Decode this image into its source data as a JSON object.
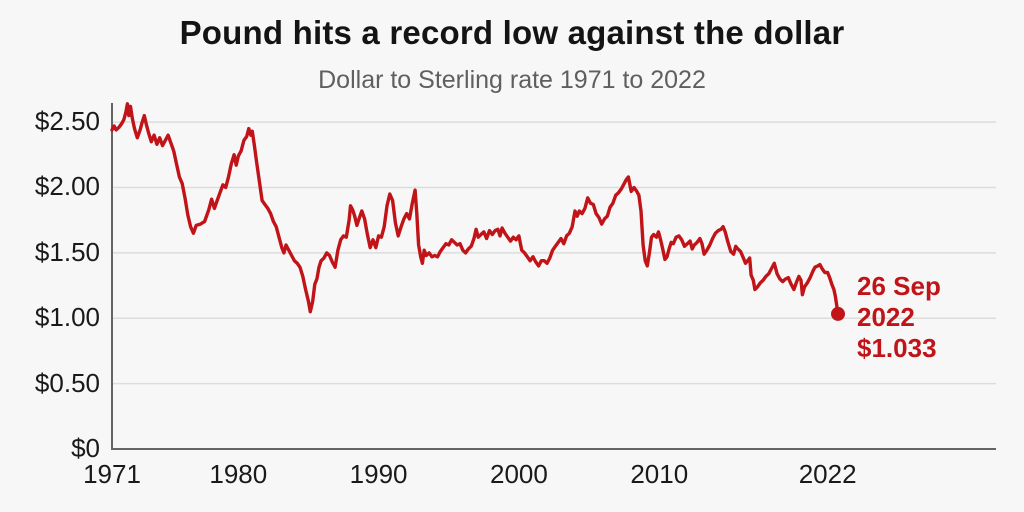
{
  "colors": {
    "background": "#f7f7f7",
    "accent_red": "#c01418",
    "grid": "#dcdcdc",
    "axis": "#646464",
    "title_text": "#141414",
    "subtitle_text": "#5f5f5f",
    "tick_text": "#1a1a1a"
  },
  "chart_data": {
    "type": "line",
    "title": "Pound hits a record low against the dollar",
    "subtitle": "Dollar to Sterling rate 1971 to 2022",
    "xlabel": "",
    "ylabel": "",
    "grid": "horizontal",
    "legend": "none",
    "xlim": [
      1971,
      2034
    ],
    "ylim": [
      0,
      2.646
    ],
    "x_ticks": [
      {
        "label": "1971",
        "value": 1971
      },
      {
        "label": "1980",
        "value": 1980
      },
      {
        "label": "1990",
        "value": 1990
      },
      {
        "label": "2000",
        "value": 2000
      },
      {
        "label": "2010",
        "value": 2010
      },
      {
        "label": "2022",
        "value": 2022
      }
    ],
    "y_ticks": [
      {
        "label": "$2.50",
        "value": 2.5
      },
      {
        "label": "$2.00",
        "value": 2.0
      },
      {
        "label": "$1.50",
        "value": 1.5
      },
      {
        "label": "$1.00",
        "value": 1.0
      },
      {
        "label": "$0.50",
        "value": 0.5
      },
      {
        "label": "$0",
        "value": 0
      }
    ],
    "annotation": {
      "lines": [
        "26 Sep",
        "2022",
        "$1.033"
      ],
      "date": "26 Sep 2022",
      "value": 1.033
    },
    "series": [
      {
        "name": "Dollar to Sterling exchange rate",
        "points": [
          [
            1971.0,
            2.44
          ],
          [
            1971.15,
            2.47
          ],
          [
            1971.3,
            2.44
          ],
          [
            1971.5,
            2.46
          ],
          [
            1971.7,
            2.49
          ],
          [
            1971.85,
            2.52
          ],
          [
            1972.0,
            2.58
          ],
          [
            1972.1,
            2.64
          ],
          [
            1972.2,
            2.55
          ],
          [
            1972.32,
            2.62
          ],
          [
            1972.45,
            2.53
          ],
          [
            1972.6,
            2.45
          ],
          [
            1972.8,
            2.38
          ],
          [
            1973.0,
            2.44
          ],
          [
            1973.15,
            2.5
          ],
          [
            1973.3,
            2.55
          ],
          [
            1973.45,
            2.48
          ],
          [
            1973.6,
            2.42
          ],
          [
            1973.8,
            2.35
          ],
          [
            1974.0,
            2.4
          ],
          [
            1974.2,
            2.33
          ],
          [
            1974.4,
            2.38
          ],
          [
            1974.6,
            2.32
          ],
          [
            1974.8,
            2.36
          ],
          [
            1975.0,
            2.4
          ],
          [
            1975.2,
            2.34
          ],
          [
            1975.4,
            2.28
          ],
          [
            1975.6,
            2.18
          ],
          [
            1975.8,
            2.08
          ],
          [
            1976.0,
            2.03
          ],
          [
            1976.2,
            1.92
          ],
          [
            1976.4,
            1.79
          ],
          [
            1976.6,
            1.7
          ],
          [
            1976.8,
            1.65
          ],
          [
            1977.0,
            1.71
          ],
          [
            1977.3,
            1.72
          ],
          [
            1977.6,
            1.74
          ],
          [
            1977.9,
            1.83
          ],
          [
            1978.1,
            1.91
          ],
          [
            1978.3,
            1.84
          ],
          [
            1978.5,
            1.9
          ],
          [
            1978.7,
            1.96
          ],
          [
            1978.9,
            2.02
          ],
          [
            1979.1,
            2.0
          ],
          [
            1979.3,
            2.08
          ],
          [
            1979.5,
            2.18
          ],
          [
            1979.7,
            2.25
          ],
          [
            1979.85,
            2.17
          ],
          [
            1980.0,
            2.24
          ],
          [
            1980.2,
            2.28
          ],
          [
            1980.4,
            2.36
          ],
          [
            1980.6,
            2.39
          ],
          [
            1980.75,
            2.45
          ],
          [
            1980.9,
            2.4
          ],
          [
            1981.0,
            2.43
          ],
          [
            1981.15,
            2.32
          ],
          [
            1981.3,
            2.2
          ],
          [
            1981.5,
            2.05
          ],
          [
            1981.7,
            1.9
          ],
          [
            1981.9,
            1.87
          ],
          [
            1982.1,
            1.84
          ],
          [
            1982.3,
            1.8
          ],
          [
            1982.5,
            1.74
          ],
          [
            1982.7,
            1.7
          ],
          [
            1982.9,
            1.62
          ],
          [
            1983.1,
            1.54
          ],
          [
            1983.25,
            1.5
          ],
          [
            1983.4,
            1.56
          ],
          [
            1983.6,
            1.52
          ],
          [
            1983.8,
            1.48
          ],
          [
            1984.0,
            1.44
          ],
          [
            1984.2,
            1.42
          ],
          [
            1984.4,
            1.39
          ],
          [
            1984.6,
            1.32
          ],
          [
            1984.8,
            1.22
          ],
          [
            1985.0,
            1.13
          ],
          [
            1985.13,
            1.05
          ],
          [
            1985.3,
            1.13
          ],
          [
            1985.45,
            1.26
          ],
          [
            1985.6,
            1.3
          ],
          [
            1985.75,
            1.39
          ],
          [
            1985.9,
            1.44
          ],
          [
            1986.1,
            1.46
          ],
          [
            1986.3,
            1.5
          ],
          [
            1986.5,
            1.48
          ],
          [
            1986.7,
            1.43
          ],
          [
            1986.9,
            1.39
          ],
          [
            1987.1,
            1.52
          ],
          [
            1987.3,
            1.6
          ],
          [
            1987.5,
            1.63
          ],
          [
            1987.7,
            1.62
          ],
          [
            1987.9,
            1.75
          ],
          [
            1988.0,
            1.86
          ],
          [
            1988.15,
            1.83
          ],
          [
            1988.3,
            1.78
          ],
          [
            1988.45,
            1.71
          ],
          [
            1988.6,
            1.76
          ],
          [
            1988.8,
            1.82
          ],
          [
            1989.0,
            1.76
          ],
          [
            1989.2,
            1.64
          ],
          [
            1989.4,
            1.54
          ],
          [
            1989.6,
            1.6
          ],
          [
            1989.8,
            1.54
          ],
          [
            1990.0,
            1.63
          ],
          [
            1990.2,
            1.62
          ],
          [
            1990.4,
            1.7
          ],
          [
            1990.6,
            1.86
          ],
          [
            1990.8,
            1.95
          ],
          [
            1991.0,
            1.9
          ],
          [
            1991.2,
            1.73
          ],
          [
            1991.4,
            1.63
          ],
          [
            1991.6,
            1.7
          ],
          [
            1991.8,
            1.76
          ],
          [
            1992.0,
            1.8
          ],
          [
            1992.2,
            1.76
          ],
          [
            1992.4,
            1.88
          ],
          [
            1992.6,
            1.98
          ],
          [
            1992.72,
            1.8
          ],
          [
            1992.85,
            1.56
          ],
          [
            1993.0,
            1.47
          ],
          [
            1993.12,
            1.42
          ],
          [
            1993.25,
            1.52
          ],
          [
            1993.4,
            1.48
          ],
          [
            1993.6,
            1.5
          ],
          [
            1993.8,
            1.47
          ],
          [
            1994.0,
            1.48
          ],
          [
            1994.2,
            1.47
          ],
          [
            1994.4,
            1.51
          ],
          [
            1994.6,
            1.54
          ],
          [
            1994.8,
            1.57
          ],
          [
            1995.0,
            1.56
          ],
          [
            1995.2,
            1.6
          ],
          [
            1995.4,
            1.58
          ],
          [
            1995.6,
            1.56
          ],
          [
            1995.8,
            1.57
          ],
          [
            1996.0,
            1.52
          ],
          [
            1996.2,
            1.5
          ],
          [
            1996.4,
            1.53
          ],
          [
            1996.6,
            1.55
          ],
          [
            1996.8,
            1.61
          ],
          [
            1996.95,
            1.68
          ],
          [
            1997.1,
            1.62
          ],
          [
            1997.3,
            1.64
          ],
          [
            1997.5,
            1.66
          ],
          [
            1997.7,
            1.61
          ],
          [
            1997.9,
            1.67
          ],
          [
            1998.1,
            1.64
          ],
          [
            1998.3,
            1.67
          ],
          [
            1998.5,
            1.68
          ],
          [
            1998.65,
            1.63
          ],
          [
            1998.8,
            1.69
          ],
          [
            1999.0,
            1.65
          ],
          [
            1999.2,
            1.62
          ],
          [
            1999.4,
            1.59
          ],
          [
            1999.6,
            1.62
          ],
          [
            1999.8,
            1.6
          ],
          [
            2000.0,
            1.63
          ],
          [
            2000.2,
            1.52
          ],
          [
            2000.4,
            1.5
          ],
          [
            2000.6,
            1.47
          ],
          [
            2000.8,
            1.44
          ],
          [
            2001.0,
            1.47
          ],
          [
            2001.2,
            1.43
          ],
          [
            2001.4,
            1.4
          ],
          [
            2001.6,
            1.44
          ],
          [
            2001.8,
            1.44
          ],
          [
            2002.0,
            1.42
          ],
          [
            2002.2,
            1.46
          ],
          [
            2002.4,
            1.52
          ],
          [
            2002.6,
            1.55
          ],
          [
            2002.8,
            1.58
          ],
          [
            2003.0,
            1.61
          ],
          [
            2003.2,
            1.57
          ],
          [
            2003.4,
            1.63
          ],
          [
            2003.6,
            1.65
          ],
          [
            2003.8,
            1.7
          ],
          [
            2004.0,
            1.82
          ],
          [
            2004.15,
            1.78
          ],
          [
            2004.3,
            1.82
          ],
          [
            2004.5,
            1.8
          ],
          [
            2004.7,
            1.84
          ],
          [
            2004.9,
            1.92
          ],
          [
            2005.1,
            1.88
          ],
          [
            2005.3,
            1.87
          ],
          [
            2005.5,
            1.8
          ],
          [
            2005.7,
            1.77
          ],
          [
            2005.9,
            1.72
          ],
          [
            2006.1,
            1.76
          ],
          [
            2006.3,
            1.78
          ],
          [
            2006.5,
            1.85
          ],
          [
            2006.7,
            1.88
          ],
          [
            2006.9,
            1.94
          ],
          [
            2007.1,
            1.96
          ],
          [
            2007.3,
            1.99
          ],
          [
            2007.5,
            2.03
          ],
          [
            2007.65,
            2.06
          ],
          [
            2007.8,
            2.08
          ],
          [
            2008.0,
            1.97
          ],
          [
            2008.2,
            2.0
          ],
          [
            2008.4,
            1.97
          ],
          [
            2008.55,
            1.94
          ],
          [
            2008.7,
            1.82
          ],
          [
            2008.85,
            1.56
          ],
          [
            2009.0,
            1.44
          ],
          [
            2009.15,
            1.4
          ],
          [
            2009.3,
            1.5
          ],
          [
            2009.45,
            1.62
          ],
          [
            2009.6,
            1.64
          ],
          [
            2009.8,
            1.62
          ],
          [
            2009.95,
            1.66
          ],
          [
            2010.1,
            1.6
          ],
          [
            2010.25,
            1.53
          ],
          [
            2010.4,
            1.45
          ],
          [
            2010.55,
            1.47
          ],
          [
            2010.7,
            1.53
          ],
          [
            2010.85,
            1.58
          ],
          [
            2011.0,
            1.57
          ],
          [
            2011.2,
            1.62
          ],
          [
            2011.4,
            1.63
          ],
          [
            2011.6,
            1.6
          ],
          [
            2011.8,
            1.55
          ],
          [
            2012.0,
            1.57
          ],
          [
            2012.2,
            1.59
          ],
          [
            2012.35,
            1.53
          ],
          [
            2012.5,
            1.56
          ],
          [
            2012.7,
            1.58
          ],
          [
            2012.9,
            1.61
          ],
          [
            2013.05,
            1.57
          ],
          [
            2013.2,
            1.49
          ],
          [
            2013.4,
            1.52
          ],
          [
            2013.6,
            1.56
          ],
          [
            2013.8,
            1.61
          ],
          [
            2014.0,
            1.65
          ],
          [
            2014.2,
            1.67
          ],
          [
            2014.4,
            1.68
          ],
          [
            2014.55,
            1.7
          ],
          [
            2014.7,
            1.66
          ],
          [
            2014.9,
            1.58
          ],
          [
            2015.1,
            1.51
          ],
          [
            2015.3,
            1.49
          ],
          [
            2015.45,
            1.55
          ],
          [
            2015.6,
            1.53
          ],
          [
            2015.8,
            1.51
          ],
          [
            2016.0,
            1.46
          ],
          [
            2016.15,
            1.42
          ],
          [
            2016.3,
            1.44
          ],
          [
            2016.45,
            1.46
          ],
          [
            2016.55,
            1.33
          ],
          [
            2016.7,
            1.29
          ],
          [
            2016.82,
            1.22
          ],
          [
            2017.0,
            1.24
          ],
          [
            2017.2,
            1.27
          ],
          [
            2017.4,
            1.29
          ],
          [
            2017.6,
            1.32
          ],
          [
            2017.8,
            1.34
          ],
          [
            2018.0,
            1.38
          ],
          [
            2018.2,
            1.42
          ],
          [
            2018.4,
            1.34
          ],
          [
            2018.6,
            1.3
          ],
          [
            2018.8,
            1.28
          ],
          [
            2019.0,
            1.3
          ],
          [
            2019.2,
            1.31
          ],
          [
            2019.4,
            1.26
          ],
          [
            2019.6,
            1.22
          ],
          [
            2019.8,
            1.28
          ],
          [
            2019.95,
            1.32
          ],
          [
            2020.1,
            1.29
          ],
          [
            2020.2,
            1.18
          ],
          [
            2020.35,
            1.24
          ],
          [
            2020.55,
            1.27
          ],
          [
            2020.75,
            1.31
          ],
          [
            2020.95,
            1.36
          ],
          [
            2021.1,
            1.39
          ],
          [
            2021.3,
            1.4
          ],
          [
            2021.45,
            1.41
          ],
          [
            2021.6,
            1.38
          ],
          [
            2021.8,
            1.35
          ],
          [
            2022.0,
            1.35
          ],
          [
            2022.15,
            1.31
          ],
          [
            2022.3,
            1.26
          ],
          [
            2022.45,
            1.22
          ],
          [
            2022.55,
            1.17
          ],
          [
            2022.65,
            1.1
          ],
          [
            2022.74,
            1.033
          ]
        ]
      }
    ]
  }
}
